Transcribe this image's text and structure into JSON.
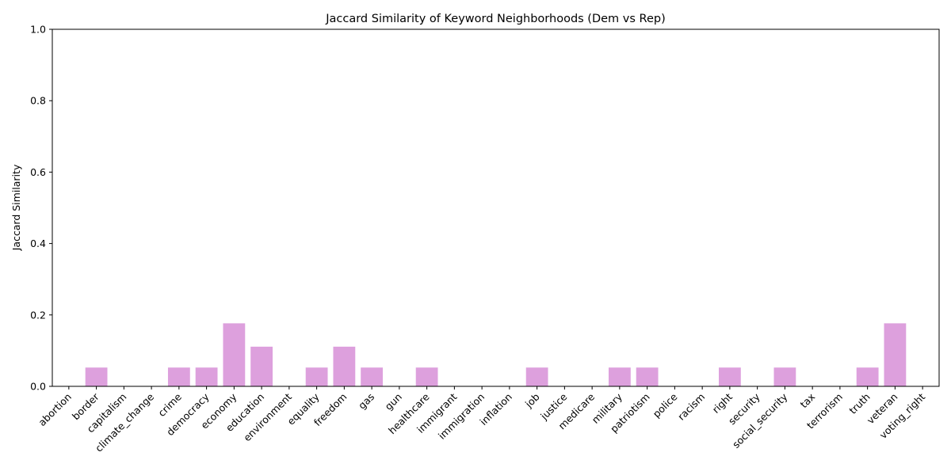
{
  "chart_data": {
    "type": "bar",
    "title": "Jaccard Similarity of Keyword Neighborhoods (Dem vs Rep)",
    "xlabel": "",
    "ylabel": "Jaccard Similarity",
    "ylim": [
      0,
      1
    ],
    "yticks": [
      "0.0",
      "0.2",
      "0.4",
      "0.6",
      "0.8",
      "1.0"
    ],
    "bar_color": "#dda0dd",
    "grid": false,
    "categories": [
      "abortion",
      "border",
      "capitalism",
      "climate_change",
      "crime",
      "democracy",
      "economy",
      "education",
      "environment",
      "equality",
      "freedom",
      "gas",
      "gun",
      "healthcare",
      "immigrant",
      "immigration",
      "inflation",
      "job",
      "justice",
      "medicare",
      "military",
      "patriotism",
      "police",
      "racism",
      "right",
      "security",
      "social_security",
      "tax",
      "terrorism",
      "truth",
      "veteran",
      "voting_right"
    ],
    "values": [
      0,
      0.0526,
      0,
      0,
      0.0526,
      0.0526,
      0.1765,
      0.1111,
      0,
      0.0526,
      0.1111,
      0.0526,
      0,
      0.0526,
      0,
      0,
      0,
      0.0526,
      0,
      0,
      0.0526,
      0.0526,
      0,
      0,
      0.0526,
      0,
      0.0526,
      0,
      0,
      0.0526,
      0.1765,
      0
    ]
  }
}
